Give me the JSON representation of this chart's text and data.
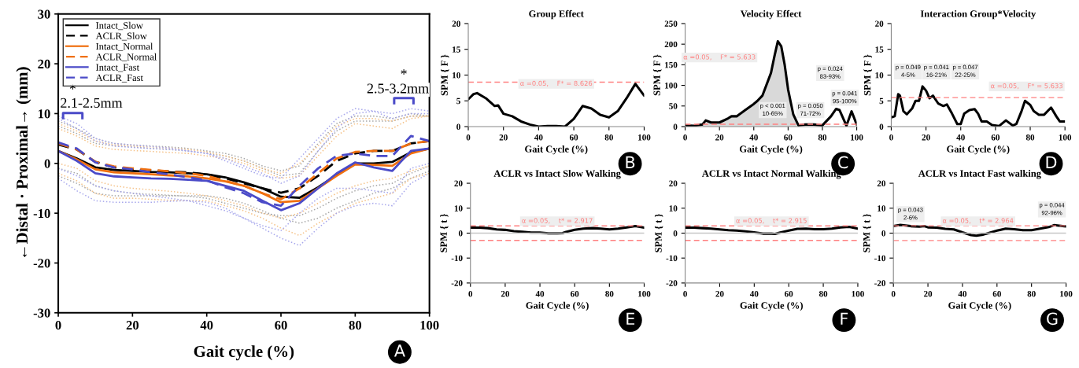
{
  "chart_data": [
    {
      "type": "line",
      "xlabel": "Gait cycle (%)",
      "ylabel": "←Distal · Proximal→ (mm)",
      "xlim": [
        0,
        100
      ],
      "ylim": [
        -30,
        30
      ],
      "xticks": [
        0,
        20,
        40,
        60,
        80,
        100
      ],
      "yticks": [
        -30,
        -20,
        -10,
        0,
        10,
        20,
        30
      ],
      "legend": "top left",
      "x": [
        0,
        5,
        10,
        15,
        20,
        25,
        30,
        35,
        40,
        45,
        50,
        55,
        60,
        65,
        70,
        75,
        80,
        85,
        90,
        95,
        100
      ],
      "series": [
        {
          "color": "#a8a8a8",
          "line_style": "dotted",
          "values": [
            7.5,
            6,
            4,
            3.5,
            3.3,
            3,
            2.8,
            2.5,
            2,
            1.5,
            0.5,
            -1,
            -2.5,
            -2,
            2.5,
            6.5,
            8.5,
            8.5,
            8.5,
            9.5,
            9.5
          ]
        },
        {
          "color": "#a8a8a8",
          "line_style": "dotted",
          "values": [
            -2.5,
            -4,
            -6,
            -6.5,
            -6.5,
            -6.5,
            -6.5,
            -6.5,
            -6.5,
            -7,
            -8,
            -9.5,
            -11,
            -12,
            -11,
            -9,
            -7.5,
            -6,
            -5,
            -3,
            -1.5
          ]
        },
        {
          "color": "#a8a8a8",
          "line_style": "dotted",
          "values": [
            8.5,
            7,
            5,
            4,
            3.7,
            3.5,
            3.3,
            3,
            2.5,
            2,
            1,
            -0.5,
            -1.5,
            -0.5,
            4,
            8,
            9.5,
            9.5,
            9,
            10,
            9.5
          ]
        },
        {
          "color": "#a8a8a8",
          "line_style": "dotted",
          "values": [
            -1,
            -2,
            -4.5,
            -5.5,
            -6,
            -6.2,
            -6.4,
            -6.6,
            -7,
            -8,
            -9,
            -10,
            -10.5,
            -10.5,
            -9,
            -7,
            -5.5,
            -4.5,
            -4,
            -2,
            -0.5
          ]
        },
        {
          "color": "#f5c38a",
          "line_style": "dotted",
          "values": [
            7,
            5.5,
            3.5,
            2.8,
            2.6,
            2.4,
            2.2,
            2,
            1.5,
            1,
            0,
            -1.5,
            -3,
            -2.5,
            1.5,
            5.5,
            8,
            7.5,
            7,
            9,
            9.5
          ]
        },
        {
          "color": "#f5c38a",
          "line_style": "dotted",
          "values": [
            -2,
            -3.5,
            -6,
            -7,
            -7,
            -7.2,
            -7.4,
            -7.5,
            -7.5,
            -8.5,
            -9.5,
            -11,
            -13,
            -14.5,
            -12,
            -10,
            -8,
            -7,
            -6,
            -3,
            -2
          ]
        },
        {
          "color": "#f5c38a",
          "line_style": "dotted",
          "values": [
            8,
            6.5,
            4.5,
            3.7,
            3.5,
            3.3,
            3.1,
            2.8,
            2.3,
            1.5,
            0.5,
            -1,
            -2,
            0,
            3.5,
            7.5,
            9,
            9,
            8.5,
            9.5,
            9.5
          ]
        },
        {
          "color": "#f5c38a",
          "line_style": "dotted",
          "values": [
            0,
            -1,
            -3.5,
            -4.5,
            -5,
            -5.3,
            -5.6,
            -6,
            -6.5,
            -7.5,
            -8.5,
            -10,
            -11,
            -10,
            -8,
            -6,
            -4.5,
            -3.5,
            -3,
            -1.5,
            -0.5
          ]
        },
        {
          "color": "#a8a8ec",
          "line_style": "dotted",
          "values": [
            9,
            7,
            4.5,
            3.5,
            3.2,
            3,
            2.8,
            2.5,
            2,
            1,
            -0.5,
            -2,
            -4,
            -2.5,
            2.5,
            7,
            10,
            10.5,
            9,
            10,
            10
          ]
        },
        {
          "color": "#a8a8ec",
          "line_style": "dotted",
          "values": [
            -3,
            -5.5,
            -7.5,
            -7.8,
            -7.8,
            -7.8,
            -7.6,
            -7.5,
            -7.8,
            -9,
            -11,
            -13,
            -15,
            -16.5,
            -13,
            -10,
            -8.5,
            -8,
            -8.5,
            -4,
            -2
          ]
        },
        {
          "color": "#a8a8ec",
          "line_style": "dotted",
          "values": [
            9.5,
            8,
            5,
            4,
            3.7,
            3.4,
            3.1,
            2.5,
            2,
            0.5,
            -1,
            -2.5,
            -3,
            1,
            5,
            9,
            11,
            10.5,
            10,
            11,
            10.5
          ]
        },
        {
          "color": "#a8a8ec",
          "line_style": "dotted",
          "values": [
            -1,
            -2.5,
            -4.5,
            -5.5,
            -6,
            -6.5,
            -7,
            -7.5,
            -8.5,
            -9.5,
            -11,
            -12.5,
            -13.5,
            -10,
            -7,
            -5,
            -5,
            -5.5,
            -6,
            -1,
            0
          ]
        },
        {
          "name": "Intact_Slow",
          "color": "#000000",
          "line_style": "solid",
          "values": [
            2.5,
            1,
            -0.8,
            -1.3,
            -1.5,
            -1.7,
            -1.8,
            -2,
            -2.2,
            -2.8,
            -3.8,
            -5,
            -6.7,
            -6.9,
            -4.8,
            -2.3,
            0,
            0,
            0.3,
            2.2,
            3
          ]
        },
        {
          "name": "ACLR_Slow",
          "color": "#000000",
          "line_style": "dashed",
          "values": [
            3.8,
            2.8,
            0.3,
            -0.8,
            -1.2,
            -1.4,
            -1.6,
            -1.8,
            -2.2,
            -3,
            -4,
            -5,
            -5.9,
            -5,
            -2.5,
            0.5,
            2,
            2.5,
            2.5,
            4,
            4.5
          ]
        },
        {
          "name": "Intact_Normal",
          "color": "#f07010",
          "line_style": "solid",
          "values": [
            2.5,
            0.8,
            -1.2,
            -1.8,
            -2,
            -2.2,
            -2.4,
            -2.6,
            -3,
            -3.6,
            -4.5,
            -6,
            -7.8,
            -7.5,
            -5,
            -2.5,
            -0.2,
            -0.3,
            -0.5,
            2,
            3
          ]
        },
        {
          "name": "ACLR_Normal",
          "color": "#f07010",
          "line_style": "dashed",
          "values": [
            4,
            2.8,
            0.3,
            -0.6,
            -1,
            -1.3,
            -1.6,
            -2,
            -2.5,
            -3.5,
            -4.5,
            -6,
            -7.2,
            -5,
            -2,
            1,
            2.3,
            2.5,
            2.5,
            4,
            4.5
          ]
        },
        {
          "name": "Intact_Fast",
          "color": "#4b4bc8",
          "line_style": "solid",
          "values": [
            2.5,
            0.5,
            -2,
            -2.6,
            -2.8,
            -3,
            -3.1,
            -3.3,
            -3.5,
            -4.5,
            -5.5,
            -7.5,
            -9.4,
            -8,
            -5,
            -2,
            0.2,
            -0.8,
            -1.5,
            2.5,
            3
          ]
        },
        {
          "name": "ACLR_Fast",
          "color": "#4b4bc8",
          "line_style": "dashed",
          "values": [
            4.2,
            3,
            0.2,
            -0.8,
            -1.2,
            -1.8,
            -2.2,
            -2.8,
            -3.4,
            -4.8,
            -6,
            -7.8,
            -8.5,
            -4.5,
            -1,
            1.5,
            2,
            1.5,
            1.5,
            5.5,
            4.5
          ]
        }
      ],
      "annotations": [
        "A",
        "*",
        "2.1-2.5mm",
        "*",
        "2.5-3.2mm"
      ]
    },
    {
      "type": "line",
      "title": "Group Effect",
      "xlabel": "Gait Cycle (%)",
      "ylabel": "SPM { F }",
      "xlim": [
        0,
        100
      ],
      "ylim": [
        0,
        20
      ],
      "xticks": [
        0,
        20,
        40,
        60,
        80,
        100
      ],
      "yticks": [
        0,
        5,
        10,
        15,
        20
      ],
      "series": [
        {
          "color": "#000000",
          "x": [
            0,
            3,
            5,
            10,
            15,
            17,
            20,
            25,
            30,
            35,
            40,
            45,
            50,
            55,
            60,
            65,
            70,
            75,
            80,
            85,
            90,
            95,
            100
          ],
          "values": [
            5.3,
            6.3,
            6.5,
            5.5,
            4,
            4.1,
            2.5,
            2,
            1,
            0.4,
            0,
            0.1,
            0.1,
            0,
            1.5,
            4,
            3.5,
            2.3,
            1.8,
            3,
            5.5,
            8.3,
            6
          ]
        }
      ],
      "ref_lines": [
        {
          "axis": "y",
          "value": 8.626,
          "label": "α =0.05,    F* = 8.626",
          "color": "#ff8080",
          "line_style": "dashed"
        }
      ],
      "annotations": [
        "B"
      ]
    },
    {
      "type": "line",
      "title": "Velocity Effect",
      "xlabel": "Gait Cycle (%)",
      "ylabel": "SPM { F }",
      "xlim": [
        0,
        100
      ],
      "ylim": [
        0,
        250
      ],
      "xticks": [
        0,
        20,
        40,
        60,
        80,
        100
      ],
      "yticks": [
        0,
        50,
        100,
        150,
        200,
        250
      ],
      "series": [
        {
          "type": "area",
          "color": "#d9d9d9",
          "x": [
            10,
            12,
            15,
            20,
            25,
            27,
            30,
            35,
            40,
            42,
            45,
            50,
            52,
            54,
            56,
            58,
            60,
            63,
            65
          ],
          "values": [
            5,
            15,
            10,
            10,
            20,
            25,
            25,
            40,
            55,
            62,
            75,
            130,
            170,
            207,
            195,
            150,
            90,
            30,
            10
          ]
        },
        {
          "color": "#000000",
          "x": [
            0,
            5,
            10,
            12,
            15,
            20,
            25,
            27,
            30,
            35,
            40,
            42,
            45,
            50,
            52,
            54,
            56,
            58,
            60,
            63,
            66,
            70,
            75,
            80,
            85,
            88,
            90,
            94,
            97,
            100
          ],
          "values": [
            3,
            2,
            5,
            15,
            10,
            10,
            20,
            25,
            25,
            40,
            55,
            62,
            75,
            130,
            170,
            207,
            195,
            150,
            90,
            30,
            3,
            5,
            5,
            3,
            25,
            43,
            40,
            2,
            37,
            5
          ]
        }
      ],
      "ref_lines": [
        {
          "axis": "y",
          "value": 5.633,
          "label": "α =0.05,    F* = 5.633",
          "color": "#ff8080",
          "line_style": "dashed"
        }
      ],
      "annotations": [
        "C",
        "p < 0.001\n10-65%",
        "p = 0.050\n71-72%",
        "p = 0.024\n83-93%",
        "p = 0.041\n95-100%"
      ]
    },
    {
      "type": "line",
      "title": "Interaction Group*Velocity",
      "xlabel": "Gait Cycle (%)",
      "ylabel": "SPM { F }",
      "xlim": [
        0,
        100
      ],
      "ylim": [
        0,
        20
      ],
      "xticks": [
        0,
        20,
        40,
        60,
        80,
        100
      ],
      "yticks": [
        0,
        5,
        10,
        15,
        20
      ],
      "series": [
        {
          "color": "#000000",
          "x": [
            0,
            2,
            4,
            5,
            7,
            9,
            12,
            14,
            16,
            18,
            20,
            22,
            24,
            27,
            30,
            32,
            35,
            38,
            40,
            42,
            45,
            48,
            50,
            52,
            55,
            58,
            62,
            66,
            70,
            72,
            75,
            77,
            80,
            82,
            85,
            88,
            92,
            95,
            97,
            100
          ],
          "values": [
            1.8,
            2,
            6.3,
            6,
            3,
            2.4,
            3.5,
            5,
            5,
            7.8,
            7,
            5.5,
            6,
            4.5,
            4,
            4.3,
            2.5,
            0.5,
            0.5,
            2.5,
            3.2,
            3.4,
            2.5,
            1,
            1,
            0.3,
            0.1,
            1.2,
            0.2,
            0.5,
            3,
            5,
            4.2,
            3,
            2.3,
            2.3,
            3.7,
            2,
            1,
            1
          ]
        }
      ],
      "ref_lines": [
        {
          "axis": "y",
          "value": 5.633,
          "label": "α =0.05,    F* = 5.633",
          "color": "#ff8080",
          "line_style": "dashed"
        }
      ],
      "annotations": [
        "D",
        "p = 0.049\n4-5%",
        "p = 0.041\n16-21%",
        "p = 0.047\n22-25%"
      ]
    },
    {
      "type": "line",
      "title": "ACLR vs Intact Slow Walking",
      "xlabel": "Gait Cycle (%)",
      "ylabel": "SPM { t }",
      "xlim": [
        0,
        100
      ],
      "ylim": [
        -20,
        20
      ],
      "xticks": [
        0,
        20,
        40,
        60,
        80,
        100
      ],
      "yticks": [
        -20,
        -10,
        0,
        10,
        20
      ],
      "series": [
        {
          "color": "#000000",
          "x": [
            0,
            5,
            10,
            15,
            20,
            25,
            30,
            35,
            40,
            45,
            50,
            53,
            55,
            60,
            65,
            70,
            75,
            80,
            85,
            90,
            95,
            100
          ],
          "values": [
            2.2,
            2.2,
            2,
            1.5,
            1.3,
            0.8,
            0.5,
            0.2,
            0.2,
            -0.1,
            -0.1,
            0,
            0.5,
            1.3,
            1.8,
            2,
            1.8,
            1.5,
            1.8,
            2.3,
            2.8,
            2.2
          ]
        }
      ],
      "ref_lines": [
        {
          "axis": "y",
          "value": 0,
          "color": "#c8c8c8",
          "line_style": "solid"
        },
        {
          "axis": "y",
          "value": 2.917,
          "label": "α =0.05,    t* = 2.917",
          "color": "#ff8080",
          "line_style": "dashed"
        },
        {
          "axis": "y",
          "value": -2.917,
          "color": "#ff8080",
          "line_style": "dashed"
        }
      ],
      "annotations": [
        "E"
      ]
    },
    {
      "type": "line",
      "title": "ACLR vs Intact Normal Walking",
      "xlabel": "Gait Cycle (%)",
      "ylabel": "SPM { t }",
      "xlim": [
        0,
        100
      ],
      "ylim": [
        -20,
        20
      ],
      "xticks": [
        0,
        20,
        40,
        60,
        80,
        100
      ],
      "yticks": [
        -20,
        -10,
        0,
        10,
        20
      ],
      "series": [
        {
          "color": "#000000",
          "x": [
            0,
            5,
            10,
            15,
            20,
            25,
            30,
            35,
            40,
            45,
            50,
            52,
            55,
            60,
            65,
            70,
            75,
            80,
            85,
            90,
            95,
            100
          ],
          "values": [
            2.2,
            2.2,
            2,
            1.8,
            1.5,
            1.2,
            1,
            0.7,
            0.3,
            -0.2,
            -0.2,
            -0.3,
            0.2,
            1,
            1.7,
            1.8,
            1.6,
            1.6,
            1.8,
            2.3,
            2.5,
            1.8
          ]
        }
      ],
      "ref_lines": [
        {
          "axis": "y",
          "value": 0,
          "color": "#c8c8c8",
          "line_style": "solid"
        },
        {
          "axis": "y",
          "value": 2.915,
          "label": "α =0.05,    t* = 2.915",
          "color": "#ff8080",
          "line_style": "dashed"
        },
        {
          "axis": "y",
          "value": -2.915,
          "color": "#ff8080",
          "line_style": "dashed"
        }
      ],
      "annotations": [
        "F"
      ]
    },
    {
      "type": "line",
      "title": "ACLR vs Intact Fast walking",
      "xlabel": "Gait Cycle (%)",
      "ylabel": "SPM { t }",
      "xlim": [
        0,
        100
      ],
      "ylim": [
        -20,
        20
      ],
      "xticks": [
        0,
        20,
        40,
        60,
        80,
        100
      ],
      "yticks": [
        -20,
        -10,
        0,
        10,
        20
      ],
      "series": [
        {
          "color": "#000000",
          "x": [
            0,
            4,
            10,
            15,
            18,
            20,
            25,
            30,
            35,
            40,
            45,
            48,
            52,
            55,
            60,
            65,
            70,
            75,
            80,
            85,
            90,
            93,
            96,
            100
          ],
          "values": [
            2.8,
            3.3,
            2.8,
            2.6,
            2.8,
            2.3,
            2.2,
            1.7,
            1.5,
            0.3,
            -0.8,
            -1,
            -0.6,
            0,
            1,
            1.8,
            1.6,
            1.2,
            1.2,
            1.8,
            2.4,
            3.2,
            3,
            2.7
          ]
        }
      ],
      "ref_lines": [
        {
          "axis": "y",
          "value": 0,
          "color": "#c8c8c8",
          "line_style": "solid"
        },
        {
          "axis": "y",
          "value": 2.964,
          "label": "α =0.05,    t* = 2.964",
          "color": "#ff8080",
          "line_style": "dashed"
        },
        {
          "axis": "y",
          "value": -2.964,
          "color": "#ff8080",
          "line_style": "dashed"
        }
      ],
      "annotations": [
        "G",
        "p = 0.043\n2-6%",
        "p = 0.044\n92-96%"
      ]
    }
  ]
}
